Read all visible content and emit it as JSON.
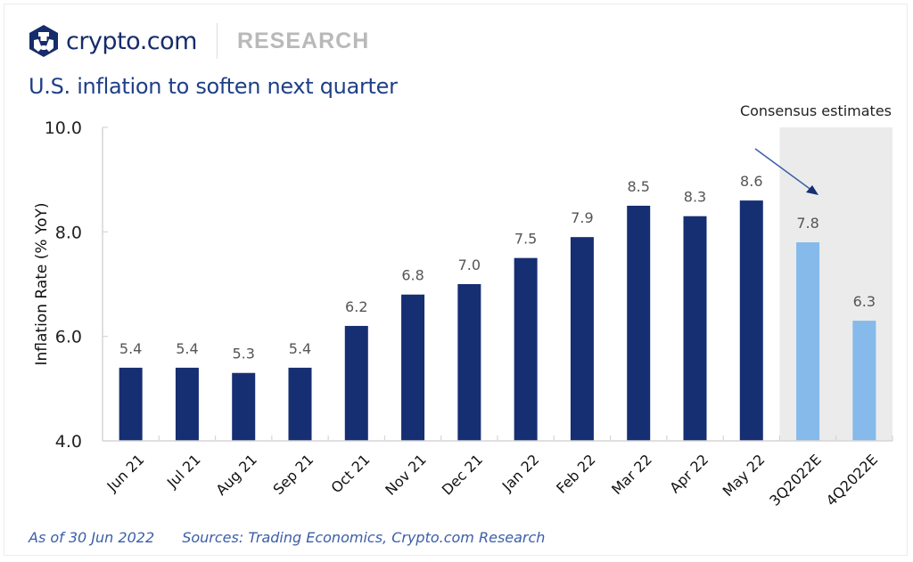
{
  "header": {
    "brand": "crypto.com",
    "section": "RESEARCH",
    "title": "U.S. inflation to soften next quarter"
  },
  "footer": {
    "as_of": "As of 30 Jun 2022",
    "sources": "Sources: Trading Economics, Crypto.com Research"
  },
  "colors": {
    "actual": "#162e72",
    "estimate": "#85baea",
    "shade": "#ebebeb",
    "brand": "#162c6b",
    "title": "#1f3f86"
  },
  "chart_data": {
    "type": "bar",
    "title": "U.S. inflation to soften next quarter",
    "xlabel": "",
    "ylabel": "Inflation Rate (% YoY)",
    "ylim": [
      4.0,
      10.0
    ],
    "yticks": [
      "4.0",
      "6.0",
      "8.0",
      "10.0"
    ],
    "grid": false,
    "categories": [
      "Jun 21",
      "Jul 21",
      "Aug 21",
      "Sep 21",
      "Oct 21",
      "Nov 21",
      "Dec 21",
      "Jan 22",
      "Feb 22",
      "Mar 22",
      "Apr 22",
      "May 22",
      "3Q2022E",
      "4Q2022E"
    ],
    "values": [
      5.4,
      5.4,
      5.3,
      5.4,
      6.2,
      6.8,
      7.0,
      7.5,
      7.9,
      8.5,
      8.3,
      8.6,
      7.8,
      6.3
    ],
    "value_labels": [
      "5.4",
      "5.4",
      "5.3",
      "5.4",
      "6.2",
      "6.8",
      "7.0",
      "7.5",
      "7.9",
      "8.5",
      "8.3",
      "8.6",
      "7.8",
      "6.3"
    ],
    "estimate_flags": [
      false,
      false,
      false,
      false,
      false,
      false,
      false,
      false,
      false,
      false,
      false,
      false,
      true,
      true
    ],
    "annotation": "Consensus estimates"
  }
}
